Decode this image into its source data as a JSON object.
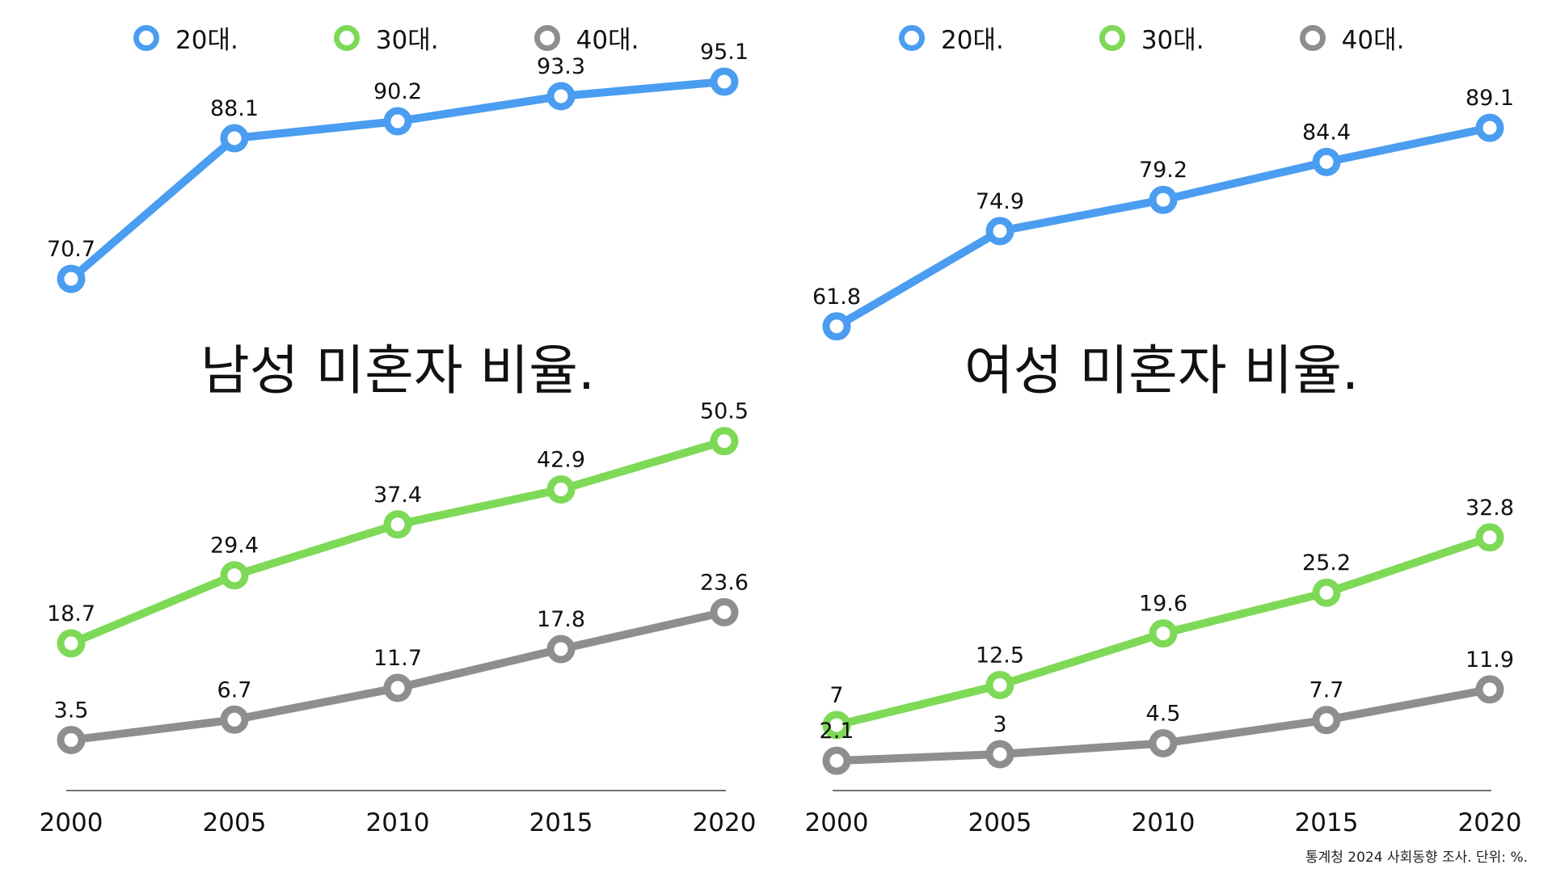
{
  "chart_data": [
    {
      "type": "line",
      "title": "남성 미혼자 비율.",
      "x": [
        2000,
        2005,
        2010,
        2015,
        2020
      ],
      "series": [
        {
          "name": "20대.",
          "color": "#4a9df0",
          "values": [
            70.7,
            88.1,
            90.2,
            93.3,
            95.1
          ]
        },
        {
          "name": "30대.",
          "color": "#7ed957",
          "values": [
            18.7,
            29.4,
            37.4,
            42.9,
            50.5
          ]
        },
        {
          "name": "40대.",
          "color": "#8e8e8e",
          "values": [
            3.5,
            6.7,
            11.7,
            17.8,
            23.6
          ]
        }
      ],
      "ylim": [
        0,
        100
      ],
      "xlabel": "",
      "ylabel": "",
      "legend": "top",
      "grid": false
    },
    {
      "type": "line",
      "title": "여성 미혼자 비율.",
      "x": [
        2000,
        2005,
        2010,
        2015,
        2020
      ],
      "series": [
        {
          "name": "20대.",
          "color": "#4a9df0",
          "values": [
            61.8,
            74.9,
            79.2,
            84.4,
            89.1
          ]
        },
        {
          "name": "30대.",
          "color": "#7ed957",
          "values": [
            7,
            12.5,
            19.6,
            25.2,
            32.8
          ]
        },
        {
          "name": "40대.",
          "color": "#8e8e8e",
          "values": [
            2.1,
            3,
            4.5,
            7.7,
            11.9
          ]
        }
      ],
      "ylim": [
        0,
        100
      ],
      "xlabel": "",
      "ylabel": "",
      "legend": "top",
      "grid": false
    }
  ],
  "source_note": "통계청 2024 사회동향 조사. 단위: %."
}
